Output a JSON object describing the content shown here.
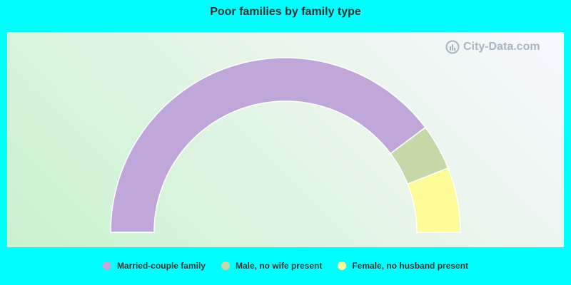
{
  "chart_data": {
    "type": "pie",
    "title": "Poor families by family type",
    "categories": [
      "Married-couple family",
      "Male, no wife present",
      "Female, no husband present"
    ],
    "values": [
      79.5,
      8.5,
      12.0
    ],
    "colors": [
      "#bfa8d9",
      "#c5d9a8",
      "#fdfa98"
    ],
    "legend": "bottom",
    "subtype": "semi-donut"
  },
  "watermark": {
    "text": "City-Data.com"
  }
}
